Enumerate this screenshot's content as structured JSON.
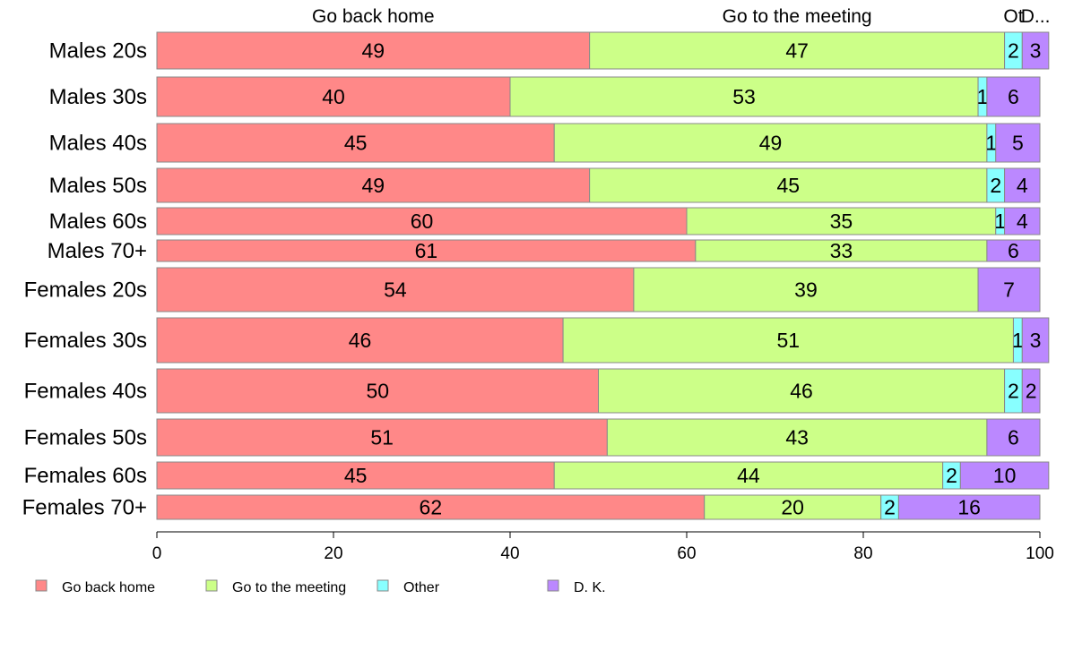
{
  "colors": {
    "go_back_home": "#FF8888",
    "go_to_meeting": "#CCFF88",
    "other": "#88FFFF",
    "dk": "#BB88FF",
    "bar_stroke": "#888888"
  },
  "chart_data": {
    "type": "bar",
    "orientation": "horizontal",
    "stacked": true,
    "categories": [
      "Males 20s",
      "Males 30s",
      "Males 40s",
      "Males 50s",
      "Males 60s",
      "Males 70+",
      "Females 20s",
      "Females 30s",
      "Females 40s",
      "Females 50s",
      "Females 60s",
      "Females 70+"
    ],
    "series": [
      {
        "name": "Go back home",
        "values": [
          49,
          40,
          45,
          49,
          60,
          61,
          54,
          46,
          50,
          51,
          45,
          62
        ],
        "color": "#FF8888"
      },
      {
        "name": "Go to the meeting",
        "values": [
          47,
          53,
          49,
          45,
          35,
          33,
          39,
          51,
          46,
          43,
          44,
          20
        ],
        "color": "#CCFF88"
      },
      {
        "name": "Other",
        "values": [
          2,
          1,
          1,
          2,
          1,
          0,
          0,
          1,
          2,
          0,
          2,
          2
        ],
        "color": "#88FFFF"
      },
      {
        "name": "D. K.",
        "values": [
          3,
          6,
          5,
          4,
          4,
          6,
          7,
          3,
          2,
          6,
          10,
          16
        ],
        "color": "#BB88FF"
      }
    ],
    "column_headers": [
      "Go back home",
      "Go to the meeting",
      "Ot",
      "D..."
    ],
    "data_labels": [
      [
        "49",
        "47",
        "2",
        "3"
      ],
      [
        "40",
        "53",
        "1",
        "6"
      ],
      [
        "45",
        "49",
        "1",
        "5"
      ],
      [
        "49",
        "45",
        "2",
        "4"
      ],
      [
        "60",
        "35",
        "1",
        "4"
      ],
      [
        "61",
        "33",
        "",
        "6"
      ],
      [
        "54",
        "39",
        "",
        "7"
      ],
      [
        "46",
        "51",
        "1",
        "3"
      ],
      [
        "50",
        "46",
        "2",
        "2"
      ],
      [
        "51",
        "43",
        "",
        "6"
      ],
      [
        "45",
        "44",
        "2",
        "10"
      ],
      [
        "62",
        "20",
        "2",
        "16"
      ]
    ],
    "xlim": [
      0,
      100
    ],
    "xticks": [
      "0",
      "20",
      "40",
      "60",
      "80",
      "100"
    ],
    "legend": {
      "position": "bottom-left",
      "entries": [
        "Go back home",
        "Go to the meeting",
        "Other",
        "D. K."
      ]
    }
  }
}
